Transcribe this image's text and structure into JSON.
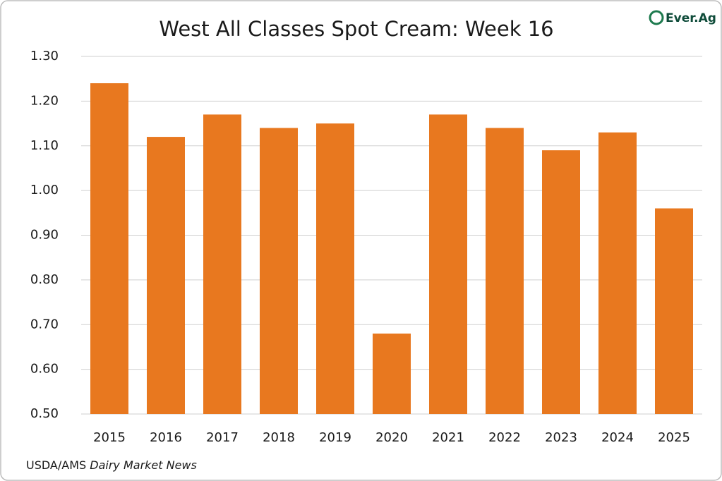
{
  "chart_data": {
    "type": "bar",
    "title": "West All Classes Spot Cream: Week 16",
    "logo": "Ever.Ag",
    "source": "USDA/AMS",
    "source_emphasis": "Dairy Market News",
    "categories": [
      "2015",
      "2016",
      "2017",
      "2018",
      "2019",
      "2020",
      "2021",
      "2022",
      "2023",
      "2024",
      "2025"
    ],
    "values": [
      1.24,
      1.12,
      1.17,
      1.14,
      1.15,
      0.68,
      1.17,
      1.14,
      1.09,
      1.13,
      0.96
    ],
    "color": "#e8781f",
    "ylim": [
      0.5,
      1.3
    ],
    "yticks": [
      {
        "value": 0.5,
        "label": "0.50"
      },
      {
        "value": 0.6,
        "label": "0.60"
      },
      {
        "value": 0.7,
        "label": "0.70"
      },
      {
        "value": 0.8,
        "label": "0.80"
      },
      {
        "value": 0.9,
        "label": "0.90"
      },
      {
        "value": 1.0,
        "label": "1.00"
      },
      {
        "value": 1.1,
        "label": "1.10"
      },
      {
        "value": 1.2,
        "label": "1.20"
      },
      {
        "value": 1.3,
        "label": "1.30"
      }
    ],
    "grid": true
  }
}
